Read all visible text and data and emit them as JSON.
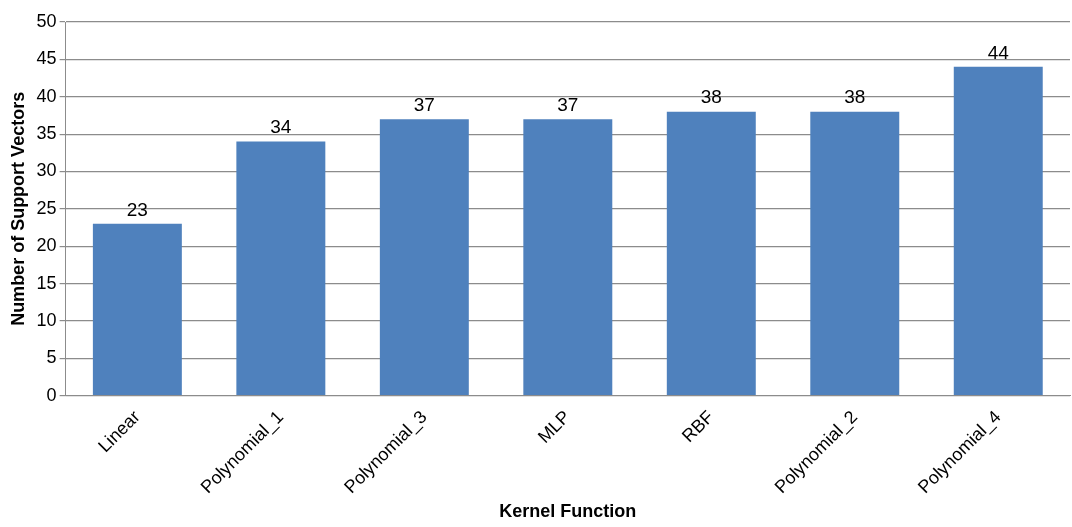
{
  "chart_data": {
    "type": "bar",
    "xlabel": "Kernel Function",
    "ylabel": "Number of Support Vectors",
    "categories": [
      "Linear",
      "Polynomial_1",
      "Polynomial_3",
      "MLP",
      "RBF",
      "Polynomial_2",
      "Polynomial_4"
    ],
    "values": [
      23,
      34,
      37,
      37,
      38,
      38,
      44
    ],
    "color": "#4f81bd",
    "ylim": [
      0,
      50
    ],
    "yticks": [
      0,
      5,
      10,
      15,
      20,
      25,
      30,
      35,
      40,
      45,
      50
    ],
    "grid": "y",
    "legend": false,
    "data_labels": true
  }
}
